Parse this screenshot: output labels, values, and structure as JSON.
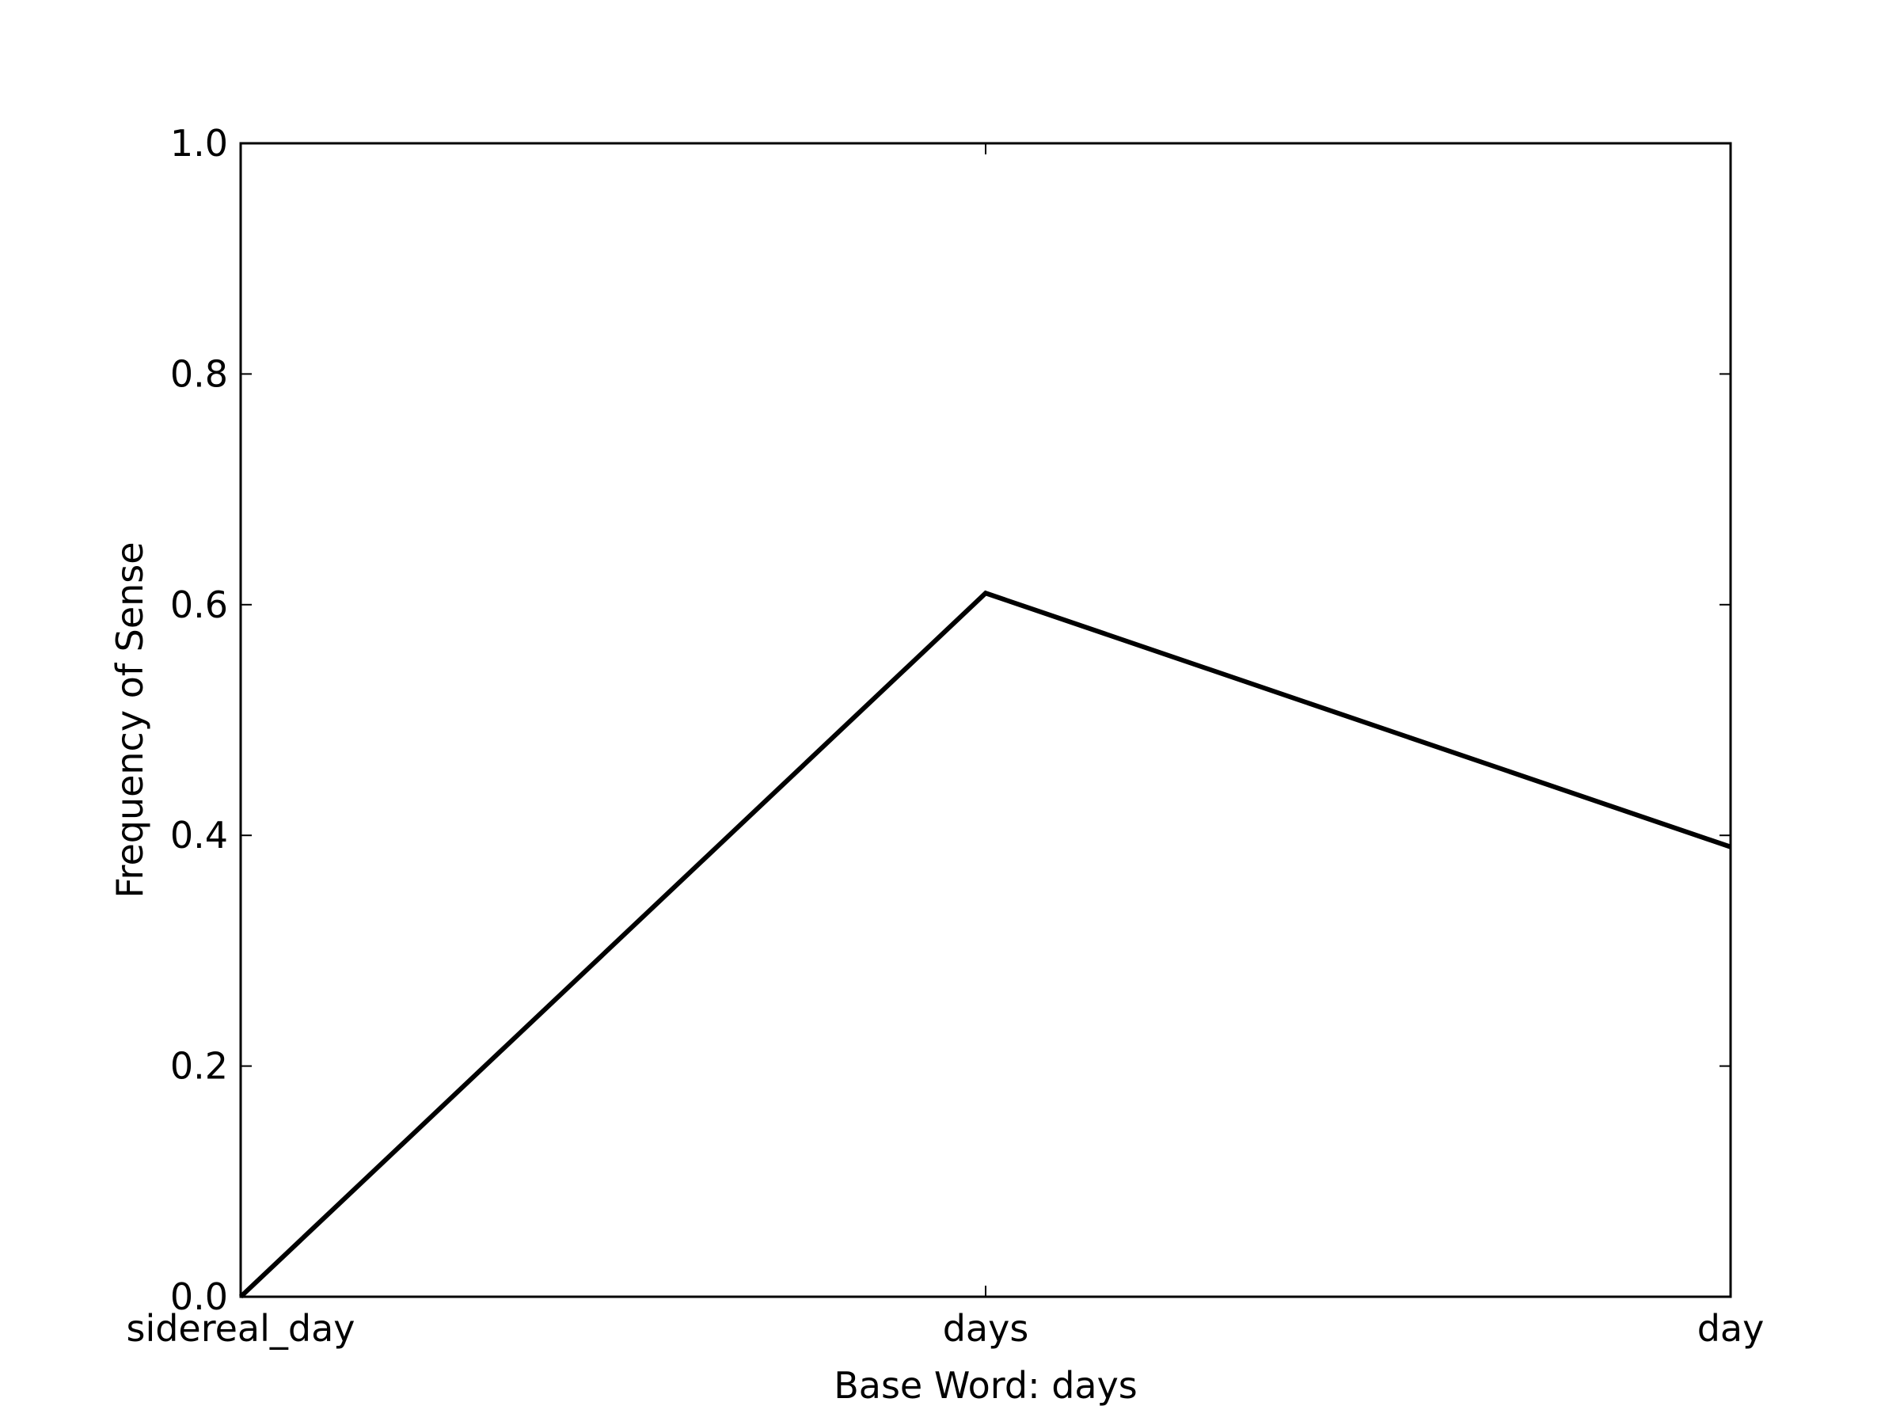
{
  "chart_data": {
    "type": "line",
    "title": "",
    "xlabel": "Base Word: days",
    "ylabel": "Frequency of Sense",
    "categories": [
      "sidereal_day",
      "days",
      "day"
    ],
    "series": [
      {
        "values": [
          0.0,
          0.61,
          0.39
        ],
        "color": "#000000"
      }
    ],
    "ylim": [
      0.0,
      1.0
    ],
    "yticks": [
      "0.0",
      "0.2",
      "0.4",
      "0.6",
      "0.8",
      "1.0"
    ],
    "grid": false,
    "legend": "none"
  }
}
